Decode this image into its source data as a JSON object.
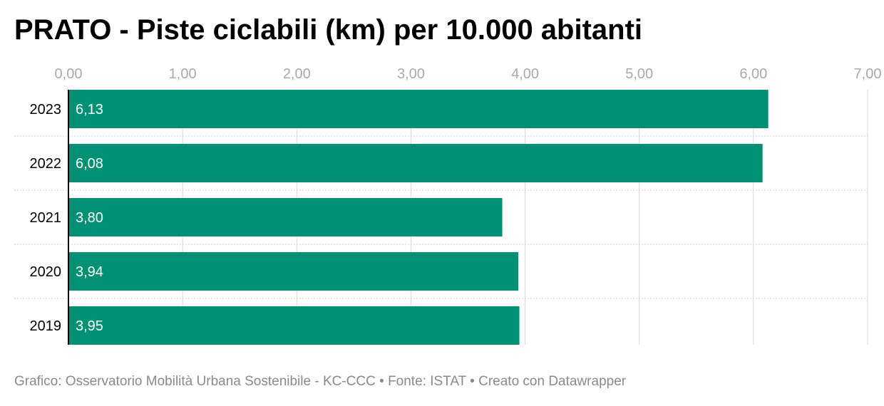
{
  "title": "PRATO - Piste ciclabili (km) per 10.000 abitanti",
  "footer": {
    "credit": "Grafico: Osservatorio Mobilità Urbana Sostenibile - KC-CCC",
    "source": "Fonte: ISTAT",
    "made_with": "Creato con Datawrapper",
    "separator": " • "
  },
  "colors": {
    "bar": "#009175",
    "grid": "#d9d9d9",
    "tick": "#a9a9a9",
    "axis": "#000000",
    "label": "#ffffff",
    "category": "#000000"
  },
  "chart_data": {
    "type": "bar",
    "orientation": "horizontal",
    "title": "PRATO - Piste ciclabili (km) per 10.000 abitanti",
    "categories": [
      "2023",
      "2022",
      "2021",
      "2020",
      "2019"
    ],
    "values": [
      6.13,
      6.08,
      3.8,
      3.94,
      3.95
    ],
    "value_labels": [
      "6,13",
      "6,08",
      "3,80",
      "3,94",
      "3,95"
    ],
    "xlim": [
      0,
      7
    ],
    "xticks": [
      0,
      1,
      2,
      3,
      4,
      5,
      6,
      7
    ],
    "xtick_labels": [
      "0,00",
      "1,00",
      "2,00",
      "3,00",
      "4,00",
      "5,00",
      "6,00",
      "7,00"
    ],
    "xaxis_position": "top",
    "grid": true,
    "legend": false,
    "xlabel": "",
    "ylabel": ""
  }
}
